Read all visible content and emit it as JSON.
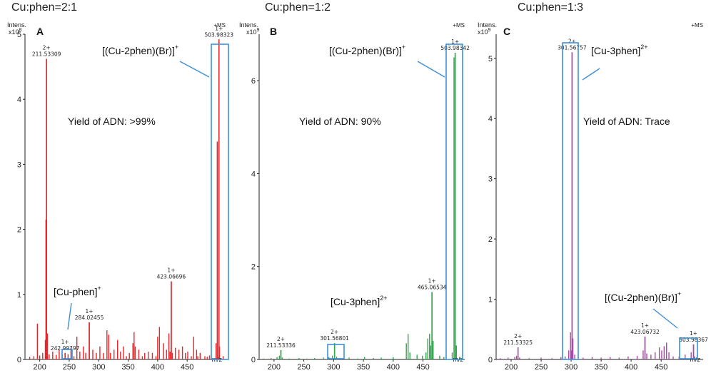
{
  "charts": [
    {
      "panel_label": "A",
      "title": "Cu:phen=2:1",
      "y_label_line1": "Intens.",
      "y_label_line2": "x10",
      "y_exponent": "8",
      "mode": "+MS",
      "x_axis_label": "m/z",
      "yield_text": "Yield of ADN: >99%",
      "main_label": "[(Cu-2phen)(Br)]",
      "main_label_sup": "+",
      "minor_label": "[Cu-phen]",
      "minor_label_sup": "+"
    },
    {
      "panel_label": "B",
      "title": "Cu:phen=1:2",
      "y_label_line1": "Intens.",
      "y_label_line2": "x10",
      "y_exponent": "9",
      "mode": "+MS",
      "x_axis_label": "m/z",
      "yield_text": "Yield of ADN: 90%",
      "main_label": "[(Cu-2phen)(Br)]",
      "main_label_sup": "+",
      "minor_label": "[Cu-3phen]",
      "minor_label_sup": "2+"
    },
    {
      "panel_label": "C",
      "title": "Cu:phen=1:3",
      "y_label_line1": "Intens.",
      "y_label_line2": "x10",
      "y_exponent": "9",
      "mode": "+MS",
      "x_axis_label": "m/z",
      "yield_text": "Yield of ADN: Trace",
      "main_label": "[Cu-3phen]",
      "main_label_sup": "2+",
      "minor_label": "[(Cu-2phen)(Br)]",
      "minor_label_sup": "+"
    }
  ],
  "chart_data": [
    {
      "type": "bar",
      "color": "#e8262a",
      "xlim": [
        175,
        520
      ],
      "ylim": [
        0,
        5
      ],
      "x_ticks": [
        200,
        250,
        300,
        350,
        400,
        450
      ],
      "y_ticks": [
        0,
        1,
        2,
        3,
        4,
        5
      ],
      "labeled_peaks": [
        {
          "mz": 211.53309,
          "intensity": 4.62,
          "mz_label": "211.53309",
          "charge": "2+"
        },
        {
          "mz": 242.99797,
          "intensity": 0.1,
          "mz_label": "242.99797",
          "charge": "1+"
        },
        {
          "mz": 284.02455,
          "intensity": 0.57,
          "mz_label": "284.02455",
          "charge": "1+"
        },
        {
          "mz": 423.06696,
          "intensity": 1.2,
          "mz_label": "423.06696",
          "charge": "1+"
        },
        {
          "mz": 503.98323,
          "intensity": 4.92,
          "mz_label": "503.98323",
          "charge": "1+"
        }
      ],
      "peaks": [
        [
          183,
          0.04
        ],
        [
          190,
          0.05
        ],
        [
          196,
          0.55
        ],
        [
          200,
          0.06
        ],
        [
          205,
          0.1
        ],
        [
          209.5,
          0.3
        ],
        [
          210.5,
          2.15
        ],
        [
          211.53,
          4.62
        ],
        [
          213,
          0.4
        ],
        [
          216,
          0.08
        ],
        [
          222,
          0.12
        ],
        [
          228,
          0.07
        ],
        [
          233,
          0.15
        ],
        [
          238,
          0.08
        ],
        [
          243,
          0.1
        ],
        [
          248,
          0.08
        ],
        [
          253,
          0.18
        ],
        [
          258,
          0.05
        ],
        [
          263,
          0.35
        ],
        [
          268,
          0.12
        ],
        [
          274,
          0.2
        ],
        [
          278,
          0.1
        ],
        [
          284.02,
          0.57
        ],
        [
          290,
          0.15
        ],
        [
          296,
          0.1
        ],
        [
          302,
          0.2
        ],
        [
          308,
          0.1
        ],
        [
          314,
          0.45
        ],
        [
          317,
          0.38
        ],
        [
          320,
          0.1
        ],
        [
          326,
          0.15
        ],
        [
          332,
          0.3
        ],
        [
          337,
          0.12
        ],
        [
          342,
          0.2
        ],
        [
          347,
          0.05
        ],
        [
          352,
          0.1
        ],
        [
          358,
          0.25
        ],
        [
          360,
          0.42
        ],
        [
          362,
          0.2
        ],
        [
          368,
          0.15
        ],
        [
          374,
          0.05
        ],
        [
          378,
          0.1
        ],
        [
          384,
          0.12
        ],
        [
          391,
          0.1
        ],
        [
          397,
          0.05
        ],
        [
          400,
          0.35
        ],
        [
          403,
          0.5
        ],
        [
          410,
          0.25
        ],
        [
          415,
          0.15
        ],
        [
          419,
          0.4
        ],
        [
          421,
          0.12
        ],
        [
          423.07,
          1.2
        ],
        [
          425,
          0.1
        ],
        [
          430,
          0.18
        ],
        [
          436,
          0.15
        ],
        [
          442,
          0.2
        ],
        [
          447,
          0.1
        ],
        [
          451,
          0.12
        ],
        [
          457,
          0.05
        ],
        [
          461,
          0.35
        ],
        [
          466,
          0.15
        ],
        [
          468,
          0.05
        ],
        [
          472,
          0.1
        ],
        [
          480,
          0.05
        ],
        [
          484,
          0.04
        ],
        [
          488,
          0.06
        ],
        [
          499,
          0.25
        ],
        [
          501,
          3.35
        ],
        [
          503.98,
          4.92
        ],
        [
          505,
          0.2
        ],
        [
          511,
          0.05
        ]
      ]
    },
    {
      "type": "bar",
      "color": "#2ea84a",
      "xlim": [
        175,
        520
      ],
      "ylim": [
        0,
        7
      ],
      "x_ticks": [
        200,
        250,
        300,
        350,
        400,
        450
      ],
      "y_ticks": [
        0,
        2,
        4,
        6
      ],
      "labeled_peaks": [
        {
          "mz": 211.53336,
          "intensity": 0.2,
          "mz_label": "211.53336",
          "charge": "2+"
        },
        {
          "mz": 301.56801,
          "intensity": 0.35,
          "mz_label": "301.56801",
          "charge": "2+"
        },
        {
          "mz": 465.06534,
          "intensity": 1.45,
          "mz_label": "465.06534",
          "charge": "1+"
        },
        {
          "mz": 503.98342,
          "intensity": 6.6,
          "mz_label": "503.98342",
          "charge": "1+"
        }
      ],
      "peaks": [
        [
          183,
          0.02
        ],
        [
          195,
          0.03
        ],
        [
          205,
          0.05
        ],
        [
          209,
          0.08
        ],
        [
          211.53,
          0.2
        ],
        [
          214,
          0.04
        ],
        [
          225,
          0.02
        ],
        [
          242,
          0.03
        ],
        [
          255,
          0.02
        ],
        [
          268,
          0.03
        ],
        [
          283,
          0.04
        ],
        [
          292,
          0.05
        ],
        [
          298,
          0.08
        ],
        [
          301.57,
          0.35
        ],
        [
          305,
          0.06
        ],
        [
          310,
          0.03
        ],
        [
          326,
          0.04
        ],
        [
          340,
          0.02
        ],
        [
          352,
          0.05
        ],
        [
          367,
          0.03
        ],
        [
          380,
          0.04
        ],
        [
          400,
          0.05
        ],
        [
          422,
          0.35
        ],
        [
          425,
          0.55
        ],
        [
          428,
          0.15
        ],
        [
          440,
          0.1
        ],
        [
          449,
          0.08
        ],
        [
          455,
          0.15
        ],
        [
          458,
          0.45
        ],
        [
          461,
          0.55
        ],
        [
          463,
          0.3
        ],
        [
          465.07,
          1.45
        ],
        [
          467,
          0.4
        ],
        [
          478,
          0.08
        ],
        [
          485,
          0.05
        ],
        [
          499,
          0.15
        ],
        [
          502,
          6.5
        ],
        [
          503.98,
          6.6
        ],
        [
          506,
          0.3
        ],
        [
          512,
          0.05
        ]
      ]
    },
    {
      "type": "bar",
      "color": "#a64ca6",
      "xlim": [
        175,
        520
      ],
      "ylim": [
        0,
        5.4
      ],
      "x_ticks": [
        200,
        250,
        300,
        350,
        400,
        450
      ],
      "y_ticks": [
        0,
        1,
        2,
        3,
        4,
        5
      ],
      "labeled_peaks": [
        {
          "mz": 211.53325,
          "intensity": 0.2,
          "mz_label": "211.53325",
          "charge": "2+"
        },
        {
          "mz": 301.56757,
          "intensity": 5.1,
          "mz_label": "301.56757",
          "charge": "2+"
        },
        {
          "mz": 423.06732,
          "intensity": 0.38,
          "mz_label": "423.06732",
          "charge": "1+"
        },
        {
          "mz": 503.98367,
          "intensity": 0.25,
          "mz_label": "503.98367",
          "charge": "1+"
        }
      ],
      "peaks": [
        [
          182,
          0.02
        ],
        [
          195,
          0.03
        ],
        [
          206,
          0.04
        ],
        [
          209,
          0.06
        ],
        [
          211.53,
          0.2
        ],
        [
          214,
          0.03
        ],
        [
          230,
          0.02
        ],
        [
          250,
          0.03
        ],
        [
          268,
          0.02
        ],
        [
          283,
          0.04
        ],
        [
          290,
          0.05
        ],
        [
          296,
          0.15
        ],
        [
          299,
          0.45
        ],
        [
          300.5,
          0.15
        ],
        [
          301.57,
          5.1
        ],
        [
          303,
          0.35
        ],
        [
          306,
          0.08
        ],
        [
          320,
          0.03
        ],
        [
          335,
          0.04
        ],
        [
          350,
          0.03
        ],
        [
          365,
          0.04
        ],
        [
          380,
          0.03
        ],
        [
          395,
          0.05
        ],
        [
          410,
          0.06
        ],
        [
          420,
          0.15
        ],
        [
          423.07,
          0.38
        ],
        [
          426,
          0.1
        ],
        [
          433,
          0.08
        ],
        [
          440,
          0.12
        ],
        [
          447,
          0.2
        ],
        [
          451,
          0.15
        ],
        [
          455,
          0.22
        ],
        [
          459,
          0.28
        ],
        [
          463,
          0.12
        ],
        [
          470,
          0.05
        ],
        [
          480,
          0.05
        ],
        [
          490,
          0.08
        ],
        [
          500,
          0.12
        ],
        [
          503.98,
          0.25
        ],
        [
          506,
          0.05
        ]
      ]
    }
  ]
}
